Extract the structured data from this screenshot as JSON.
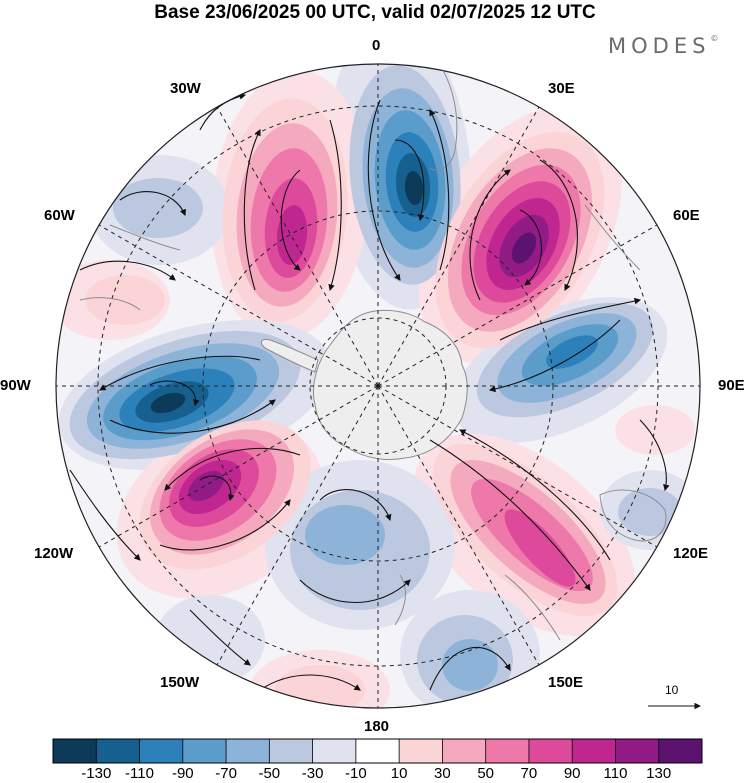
{
  "title": "Base 23/06/2025 00 UTC, valid 02/07/2025 12 UTC",
  "logo": "MODES",
  "logo_mark": "©",
  "longitude_labels": [
    {
      "id": "lon-0",
      "text": "0"
    },
    {
      "id": "lon-30e",
      "text": "30E"
    },
    {
      "id": "lon-60e",
      "text": "60E"
    },
    {
      "id": "lon-90e",
      "text": "90E"
    },
    {
      "id": "lon-120e",
      "text": "120E"
    },
    {
      "id": "lon-150e",
      "text": "150E"
    },
    {
      "id": "lon-180",
      "text": "180"
    },
    {
      "id": "lon-150w",
      "text": "150W"
    },
    {
      "id": "lon-120w",
      "text": "120W"
    },
    {
      "id": "lon-90w",
      "text": "90W"
    },
    {
      "id": "lon-60w",
      "text": "60W"
    },
    {
      "id": "lon-30w",
      "text": "30W"
    }
  ],
  "reference_vector_label": "10",
  "colorbar": {
    "ticks": [
      "-130",
      "-110",
      "-90",
      "-70",
      "-50",
      "-30",
      "-10",
      "10",
      "30",
      "50",
      "70",
      "90",
      "110",
      "130"
    ],
    "colors": [
      "#0d3a58",
      "#15608e",
      "#2d81bb",
      "#5a9dcb",
      "#8eb3d9",
      "#bcc7e0",
      "#e0e3ef",
      "#ffffff",
      "#fbd4d8",
      "#f5a9bf",
      "#ee78a9",
      "#de4a9b",
      "#c0268f",
      "#931b86",
      "#5c136f"
    ]
  },
  "colors": {
    "ocean_low": "#e0e3ef",
    "land_pole": "#eeeeee",
    "land_edge": "#8c8c8c"
  }
}
